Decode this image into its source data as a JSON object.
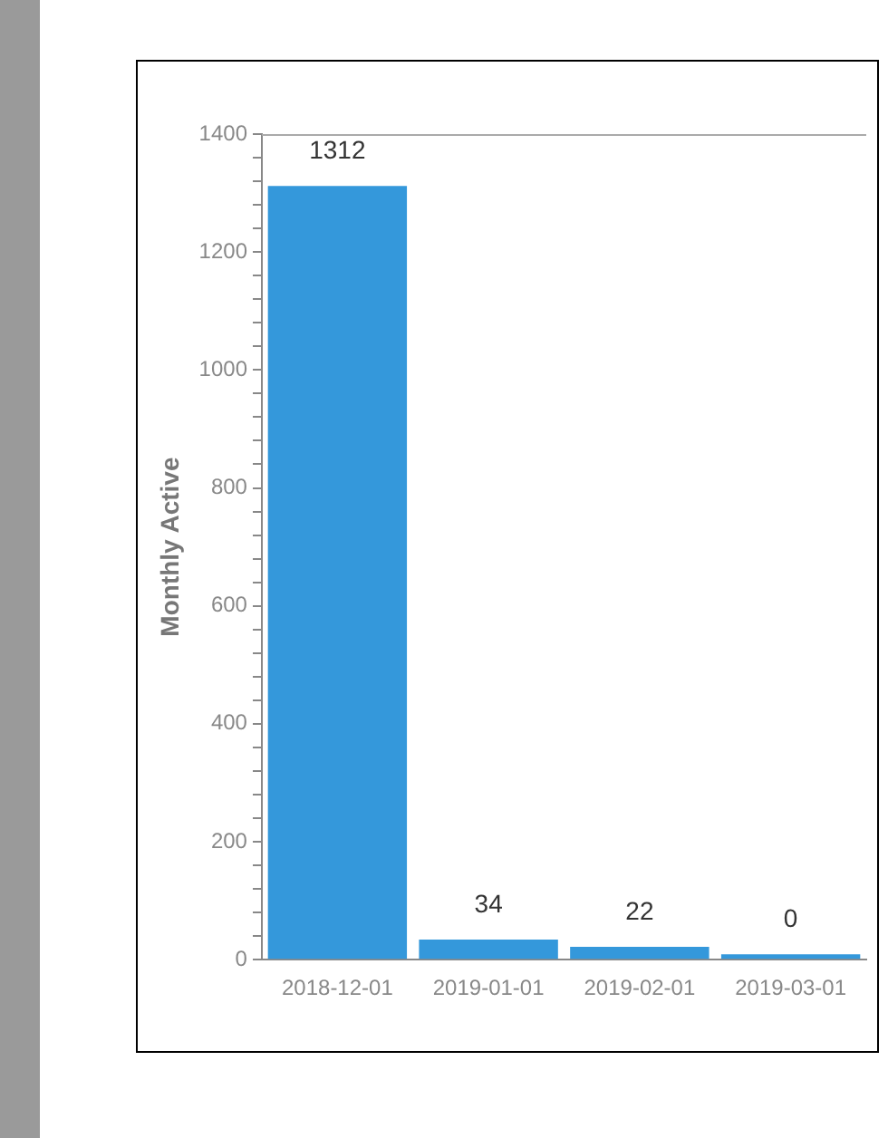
{
  "chart_data": {
    "type": "bar",
    "ylabel": "Monthly Active",
    "categories": [
      "2018-12-01",
      "2019-01-01",
      "2019-02-01",
      "2019-03-01"
    ],
    "values": [
      1312,
      34,
      22,
      0
    ],
    "color": "#3498db",
    "ylim": [
      0,
      1400
    ],
    "yticks": [
      0,
      {
        "value": 40,
        "label": null
      },
      {
        "value": 80,
        "label": null
      },
      {
        "value": 120,
        "label": null
      },
      {
        "value": 160,
        "label": null
      },
      200,
      {
        "value": 240,
        "label": null
      },
      {
        "value": 280,
        "label": null
      },
      {
        "value": 320,
        "label": null
      },
      {
        "value": 360,
        "label": null
      },
      400,
      {
        "value": 440,
        "label": null
      },
      {
        "value": 480,
        "label": null
      },
      {
        "value": 520,
        "label": null
      },
      {
        "value": 560,
        "label": null
      },
      600,
      {
        "value": 640,
        "label": null
      },
      {
        "value": 680,
        "label": null
      },
      {
        "value": 720,
        "label": null
      },
      {
        "value": 760,
        "label": null
      },
      800,
      {
        "value": 840,
        "label": null
      },
      {
        "value": 880,
        "label": null
      },
      {
        "value": 920,
        "label": null
      },
      {
        "value": 960,
        "label": null
      },
      1000,
      {
        "value": 1040,
        "label": null
      },
      {
        "value": 1080,
        "label": null
      },
      {
        "value": 1120,
        "label": null
      },
      {
        "value": 1160,
        "label": null
      },
      1200,
      {
        "value": 1240,
        "label": null
      },
      {
        "value": 1280,
        "label": null
      },
      {
        "value": 1320,
        "label": null
      },
      {
        "value": 1360,
        "label": null
      },
      1400
    ],
    "grid": false,
    "legend": false,
    "data_labels": true
  }
}
